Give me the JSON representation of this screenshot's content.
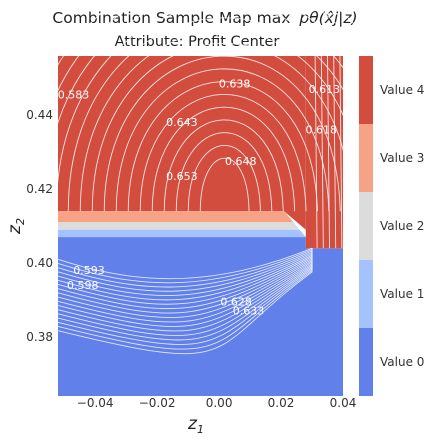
{
  "chart_data": {
    "type": "heatmap",
    "title_line1": "Combination Sample Map max",
    "title_math": "pθ(x̂j|z)",
    "title_line2": "Attribute: Profit Center",
    "xlabel": "z",
    "xlabel_sub": "1",
    "ylabel": "z",
    "ylabel_sub": "2",
    "xlim": [
      -0.052,
      0.04
    ],
    "ylim": [
      0.364,
      0.456
    ],
    "x_ticks": [
      {
        "value": -0.04,
        "label": "−0.04"
      },
      {
        "value": -0.02,
        "label": "−0.02"
      },
      {
        "value": 0.0,
        "label": "0.00"
      },
      {
        "value": 0.02,
        "label": "0.02"
      },
      {
        "value": 0.04,
        "label": "0.04"
      }
    ],
    "y_ticks": [
      {
        "value": 0.38,
        "label": "0.38"
      },
      {
        "value": 0.4,
        "label": "0.40"
      },
      {
        "value": 0.42,
        "label": "0.42"
      },
      {
        "value": 0.44,
        "label": "0.44"
      }
    ],
    "legend": [
      {
        "label": "Value 4",
        "color": "#d34d3f"
      },
      {
        "label": "Value 3",
        "color": "#f6a385"
      },
      {
        "label": "Value 2",
        "color": "#dddcdc"
      },
      {
        "label": "Value 1",
        "color": "#a3c2fe"
      },
      {
        "label": "Value 0",
        "color": "#6180e9"
      }
    ],
    "regions": [
      {
        "category": 4,
        "polygon": [
          [
            -0.052,
            0.456
          ],
          [
            0.028,
            0.456
          ],
          [
            0.028,
            0.409
          ],
          [
            0.021,
            0.414
          ],
          [
            -0.052,
            0.414
          ]
        ]
      },
      {
        "category": 3,
        "polygon": [
          [
            -0.052,
            0.414
          ],
          [
            0.021,
            0.414
          ],
          [
            0.024,
            0.411
          ],
          [
            -0.052,
            0.411
          ]
        ]
      },
      {
        "category": 2,
        "polygon": [
          [
            -0.052,
            0.411
          ],
          [
            0.024,
            0.411
          ],
          [
            0.026,
            0.409
          ],
          [
            -0.052,
            0.409
          ]
        ]
      },
      {
        "category": 1,
        "polygon": [
          [
            -0.052,
            0.409
          ],
          [
            0.026,
            0.409
          ],
          [
            0.028,
            0.407
          ],
          [
            -0.052,
            0.407
          ]
        ]
      },
      {
        "category": 0,
        "polygon": [
          [
            -0.052,
            0.407
          ],
          [
            0.028,
            0.407
          ],
          [
            0.028,
            0.404
          ],
          [
            0.04,
            0.404
          ],
          [
            0.04,
            0.364
          ],
          [
            -0.052,
            0.364
          ]
        ]
      },
      {
        "category": 4,
        "polygon": [
          [
            0.028,
            0.456
          ],
          [
            0.04,
            0.456
          ],
          [
            0.04,
            0.404
          ],
          [
            0.028,
            0.404
          ],
          [
            0.028,
            0.409
          ]
        ]
      }
    ],
    "contour_labels": [
      {
        "x": 0.005,
        "y": 0.4475,
        "text": "0.638"
      },
      {
        "x": -0.012,
        "y": 0.437,
        "text": "0.643"
      },
      {
        "x": 0.007,
        "y": 0.4265,
        "text": "0.648"
      },
      {
        "x": -0.012,
        "y": 0.4225,
        "text": "0.653"
      },
      {
        "x": -0.047,
        "y": 0.4445,
        "text": "0.583"
      },
      {
        "x": 0.034,
        "y": 0.446,
        "text": "0.613"
      },
      {
        "x": 0.033,
        "y": 0.435,
        "text": "0.618"
      },
      {
        "x": -0.042,
        "y": 0.397,
        "text": "0.593"
      },
      {
        "x": -0.044,
        "y": 0.393,
        "text": "0.598"
      },
      {
        "x": 0.0055,
        "y": 0.3885,
        "text": "0.628"
      },
      {
        "x": 0.0095,
        "y": 0.386,
        "text": "0.633"
      }
    ]
  }
}
